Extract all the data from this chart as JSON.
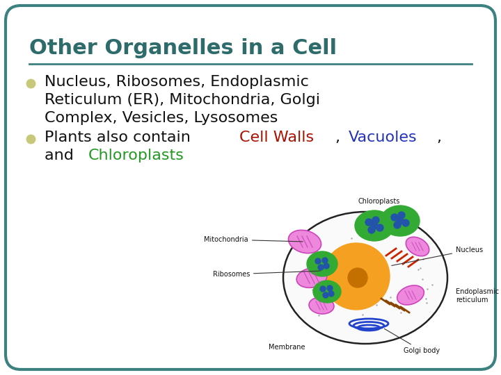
{
  "title": "Other Organelles in a Cell",
  "title_color": "#2e6b6b",
  "background_color": "#ffffff",
  "border_color": "#3d8080",
  "bullet_color": "#c8c87a",
  "bullet1_line1": "Nucleus, Ribosomes, Endoplasmic",
  "bullet1_line2": "Reticulum (ER), Mitochondria, Golgi",
  "bullet1_line3": "Complex, Vesicles, Lysosomes",
  "bullet2_prefix": "Plants also contain ",
  "bullet2_red": "Cell Walls",
  "bullet2_comma": ", ",
  "bullet2_blue": "Vacuoles",
  "bullet2_suffix": ",",
  "bullet2_line2_prefix": "and ",
  "bullet2_green": "Chloroplasts",
  "text_color": "#111111",
  "red_color": "#aa1100",
  "blue_color": "#2233bb",
  "green_color": "#229922",
  "line_color": "#3d8080",
  "figsize": [
    7.2,
    5.4
  ],
  "dpi": 100
}
